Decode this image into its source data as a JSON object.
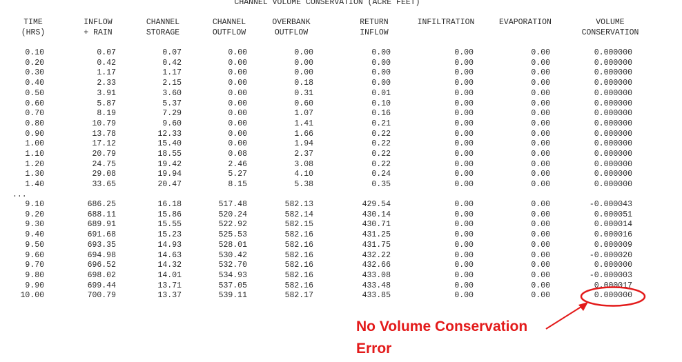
{
  "title": "CHANNEL VOLUME CONSERVATION (ACRE FEET)",
  "columns": [
    {
      "line1": "TIME",
      "line2": "(HRS)"
    },
    {
      "line1": "INFLOW",
      "line2": "+ RAIN"
    },
    {
      "line1": "CHANNEL",
      "line2": "STORAGE"
    },
    {
      "line1": "CHANNEL",
      "line2": "OUTFLOW"
    },
    {
      "line1": "OVERBANK",
      "line2": "OUTFLOW"
    },
    {
      "line1": "RETURN",
      "line2": "INFLOW"
    },
    {
      "line1": "INFILTRATION",
      "line2": ""
    },
    {
      "line1": "EVAPORATION",
      "line2": ""
    },
    {
      "line1": "VOLUME",
      "line2": "CONSERVATION"
    }
  ],
  "rows_top": [
    [
      "0.10",
      "0.07",
      "0.07",
      "0.00",
      "0.00",
      "0.00",
      "0.00",
      "0.00",
      "0.000000"
    ],
    [
      "0.20",
      "0.42",
      "0.42",
      "0.00",
      "0.00",
      "0.00",
      "0.00",
      "0.00",
      "0.000000"
    ],
    [
      "0.30",
      "1.17",
      "1.17",
      "0.00",
      "0.00",
      "0.00",
      "0.00",
      "0.00",
      "0.000000"
    ],
    [
      "0.40",
      "2.33",
      "2.15",
      "0.00",
      "0.18",
      "0.00",
      "0.00",
      "0.00",
      "0.000000"
    ],
    [
      "0.50",
      "3.91",
      "3.60",
      "0.00",
      "0.31",
      "0.01",
      "0.00",
      "0.00",
      "0.000000"
    ],
    [
      "0.60",
      "5.87",
      "5.37",
      "0.00",
      "0.60",
      "0.10",
      "0.00",
      "0.00",
      "0.000000"
    ],
    [
      "0.70",
      "8.19",
      "7.29",
      "0.00",
      "1.07",
      "0.16",
      "0.00",
      "0.00",
      "0.000000"
    ],
    [
      "0.80",
      "10.79",
      "9.60",
      "0.00",
      "1.41",
      "0.21",
      "0.00",
      "0.00",
      "0.000000"
    ],
    [
      "0.90",
      "13.78",
      "12.33",
      "0.00",
      "1.66",
      "0.22",
      "0.00",
      "0.00",
      "0.000000"
    ],
    [
      "1.00",
      "17.12",
      "15.40",
      "0.00",
      "1.94",
      "0.22",
      "0.00",
      "0.00",
      "0.000000"
    ],
    [
      "1.10",
      "20.79",
      "18.55",
      "0.08",
      "2.37",
      "0.22",
      "0.00",
      "0.00",
      "0.000000"
    ],
    [
      "1.20",
      "24.75",
      "19.42",
      "2.46",
      "3.08",
      "0.22",
      "0.00",
      "0.00",
      "0.000000"
    ],
    [
      "1.30",
      "29.08",
      "19.94",
      "5.27",
      "4.10",
      "0.24",
      "0.00",
      "0.00",
      "0.000000"
    ],
    [
      "1.40",
      "33.65",
      "20.47",
      "8.15",
      "5.38",
      "0.35",
      "0.00",
      "0.00",
      "0.000000"
    ]
  ],
  "ellipsis": "...",
  "rows_bottom": [
    [
      "9.10",
      "686.25",
      "16.18",
      "517.48",
      "582.13",
      "429.54",
      "0.00",
      "0.00",
      "-0.000043"
    ],
    [
      "9.20",
      "688.11",
      "15.86",
      "520.24",
      "582.14",
      "430.14",
      "0.00",
      "0.00",
      "0.000051"
    ],
    [
      "9.30",
      "689.91",
      "15.55",
      "522.92",
      "582.15",
      "430.71",
      "0.00",
      "0.00",
      "0.000014"
    ],
    [
      "9.40",
      "691.68",
      "15.23",
      "525.53",
      "582.16",
      "431.25",
      "0.00",
      "0.00",
      "0.000016"
    ],
    [
      "9.50",
      "693.35",
      "14.93",
      "528.01",
      "582.16",
      "431.75",
      "0.00",
      "0.00",
      "0.000009"
    ],
    [
      "9.60",
      "694.98",
      "14.63",
      "530.42",
      "582.16",
      "432.22",
      "0.00",
      "0.00",
      "-0.000020"
    ],
    [
      "9.70",
      "696.52",
      "14.32",
      "532.70",
      "582.16",
      "432.66",
      "0.00",
      "0.00",
      "0.000000"
    ],
    [
      "9.80",
      "698.02",
      "14.01",
      "534.93",
      "582.16",
      "433.08",
      "0.00",
      "0.00",
      "-0.000003"
    ],
    [
      "9.90",
      "699.44",
      "13.71",
      "537.05",
      "582.16",
      "433.48",
      "0.00",
      "0.00",
      "0.000017"
    ],
    [
      "10.00",
      "700.79",
      "13.37",
      "539.11",
      "582.17",
      "433.85",
      "0.00",
      "0.00",
      "0.000000"
    ]
  ],
  "annotation": {
    "line1": "No Volume Conservation",
    "line2": "Error",
    "color": "#e31a1a"
  }
}
